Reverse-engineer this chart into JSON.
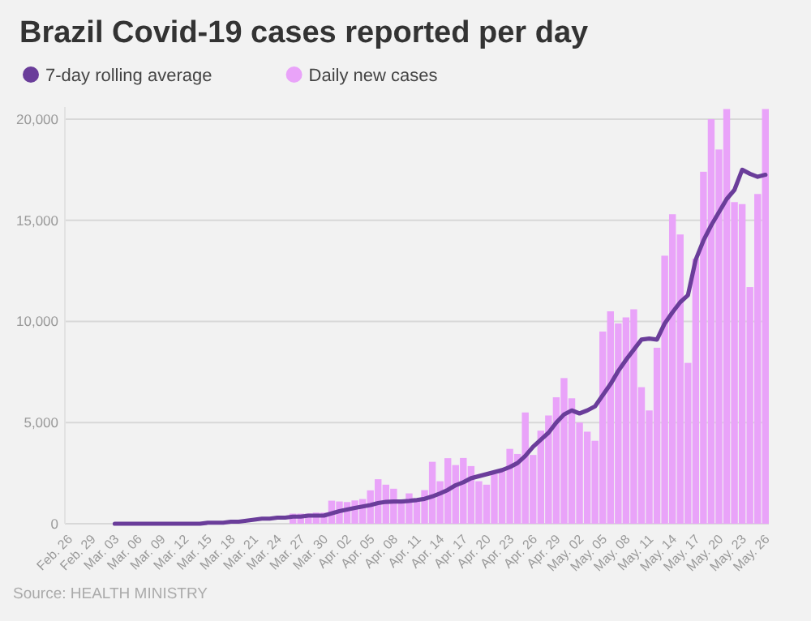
{
  "chart_data": {
    "type": "bar",
    "title": "Brazil Covid-19 cases reported per day",
    "categories": [
      "Feb. 26",
      null,
      null,
      "Feb. 29",
      null,
      null,
      "Mar. 03",
      null,
      null,
      "Mar. 06",
      null,
      null,
      "Mar. 09",
      null,
      null,
      "Mar. 12",
      null,
      null,
      "Mar. 15",
      null,
      null,
      "Mar. 18",
      null,
      null,
      "Mar. 21",
      null,
      null,
      "Mar. 24",
      null,
      null,
      "Mar. 27",
      null,
      null,
      "Mar. 30",
      null,
      null,
      "Apr. 02",
      null,
      null,
      "Apr. 05",
      null,
      null,
      "Apr. 08",
      null,
      null,
      "Apr. 11",
      null,
      null,
      "Apr. 14",
      null,
      null,
      "Apr. 17",
      null,
      null,
      "Apr. 20",
      null,
      null,
      "Apr. 23",
      null,
      null,
      "Apr. 26",
      null,
      null,
      "Apr. 29",
      null,
      null,
      "May. 02",
      null,
      null,
      "May. 05",
      null,
      null,
      "May. 08",
      null,
      null,
      "May. 11",
      null,
      null,
      "May. 14",
      null,
      null,
      "May. 17",
      null,
      null,
      "May. 20",
      null,
      null,
      "May. 23",
      null,
      null,
      "May. 26"
    ],
    "series": [
      {
        "name": "7-day rolling average",
        "type": "line",
        "color": "#6a3d9a",
        "values": [
          null,
          null,
          null,
          null,
          null,
          null,
          0,
          0,
          0,
          0,
          0,
          0,
          0,
          0,
          0,
          0,
          0,
          0,
          50,
          50,
          50,
          100,
          100,
          150,
          200,
          250,
          250,
          300,
          300,
          350,
          350,
          400,
          400,
          400,
          510,
          620,
          700,
          780,
          850,
          920,
          1020,
          1080,
          1100,
          1100,
          1130,
          1170,
          1230,
          1350,
          1500,
          1670,
          1900,
          2050,
          2250,
          2350,
          2450,
          2550,
          2650,
          2800,
          3000,
          3350,
          3800,
          4150,
          4500,
          5000,
          5400,
          5600,
          5450,
          5600,
          5800,
          6350,
          6900,
          7550,
          8100,
          8600,
          9100,
          9150,
          9100,
          9900,
          10450,
          10950,
          11300,
          13050,
          14000,
          14750,
          15400,
          16050,
          16500,
          17500,
          17300,
          17150,
          17250
        ]
      },
      {
        "name": "Daily new cases",
        "color": "#e9a3f9",
        "values": [
          null,
          null,
          null,
          null,
          null,
          null,
          null,
          null,
          null,
          null,
          null,
          null,
          null,
          null,
          null,
          null,
          null,
          null,
          null,
          null,
          null,
          null,
          null,
          null,
          null,
          null,
          null,
          null,
          null,
          500,
          500,
          500,
          550,
          550,
          1140,
          1100,
          1070,
          1150,
          1220,
          1650,
          2200,
          1930,
          1730,
          1120,
          1500,
          1260,
          1660,
          3060,
          2100,
          3240,
          2900,
          3250,
          2850,
          2100,
          1930,
          2460,
          2600,
          3700,
          3450,
          5500,
          3400,
          4600,
          5350,
          6250,
          7200,
          6200,
          5000,
          4550,
          4100,
          9500,
          10500,
          9900,
          10200,
          10600,
          6750,
          5600,
          8700,
          13250,
          15300,
          14300,
          7950,
          13100,
          17400,
          20000,
          18500,
          20500,
          15900,
          15800,
          11700,
          16300,
          20500
        ]
      }
    ],
    "ylim": [
      0,
      20600
    ],
    "yticks": [
      0,
      {
        "value": 5000,
        "label": "5,000"
      },
      {
        "value": 10000,
        "label": "10,000"
      },
      {
        "value": 15000,
        "label": "15,000"
      },
      {
        "value": 20000,
        "label": "20,000"
      }
    ],
    "grid": "y",
    "legend": "top left",
    "marker": "none",
    "line_style": "solid",
    "annotations": [
      "Source: HEALTH MINISTRY"
    ]
  }
}
